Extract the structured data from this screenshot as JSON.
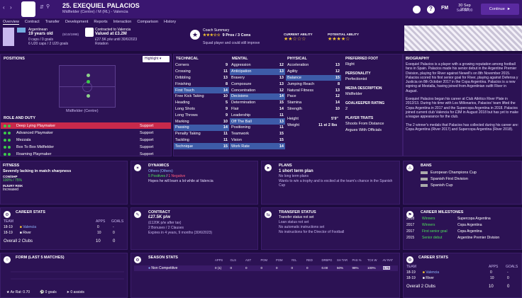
{
  "header": {
    "number_name": "25. EXEQUIEL PALACIOS",
    "position_club": "Midfielder (Centre) / M (RL) - Valencia",
    "date": "30 Sep 2018",
    "day_time": "Sun 19:00",
    "fm": "FM",
    "continue": "Continue"
  },
  "nav": [
    "Overview",
    "Contract",
    "Transfer",
    "Development",
    "Reports",
    "Interaction",
    "Comparison",
    "History"
  ],
  "info": {
    "nationality": "Argentinean",
    "age": "19 years old",
    "dob": "(5/10/1998)",
    "caps": "0 caps / 0 goals",
    "u20": "6 U20 caps / 2 U20 goals",
    "contracted": "Contracted to Valencia",
    "value": "Valued at £3.2M",
    "wage": "£27.5K p/w until 30/6/2023",
    "status": "Rotation",
    "coach_title": "Coach Summary",
    "coach_stats": "9 Pros / 3 Cons",
    "coach_text": "Squad player and could still improve",
    "ca_label": "CURRENT ABILITY",
    "pa_label": "POTENTIAL ABILITY"
  },
  "positions": {
    "title": "POSITIONS",
    "highlight": "Highlight",
    "pitch_label": "Midfielder (Centre)",
    "role_title": "ROLE AND DUTY",
    "roles": [
      {
        "name": "Deep Lying Playmaker",
        "duty": "Support"
      },
      {
        "name": "Advanced Playmaker",
        "duty": "Support"
      },
      {
        "name": "Mezzala",
        "duty": "Support"
      },
      {
        "name": "Box To Box Midfielder",
        "duty": "Support"
      },
      {
        "name": "Roaming Playmaker",
        "duty": "Support"
      }
    ]
  },
  "attributes": {
    "tech_title": "TECHNICAL",
    "ment_title": "MENTAL",
    "phys_title": "PHYSICAL",
    "technical": [
      [
        "Corners",
        "9"
      ],
      [
        "Crossing",
        "11"
      ],
      [
        "Dribbling",
        "13"
      ],
      [
        "Finishing",
        "8"
      ],
      [
        "First Touch",
        "14"
      ],
      [
        "Free Kick Taking",
        "10"
      ],
      [
        "Heading",
        "5"
      ],
      [
        "Long Shots",
        "9"
      ],
      [
        "Long Throws",
        "9"
      ],
      [
        "Marking",
        "10"
      ],
      [
        "Passing",
        "14"
      ],
      [
        "Penalty Taking",
        "11"
      ],
      [
        "Tackling",
        "11"
      ],
      [
        "Technique",
        "15"
      ]
    ],
    "mental": [
      [
        "Aggression",
        "12"
      ],
      [
        "Anticipation",
        "13"
      ],
      [
        "Bravery",
        "13"
      ],
      [
        "Composure",
        "13"
      ],
      [
        "Concentration",
        "12"
      ],
      [
        "Decisions",
        "14"
      ],
      [
        "Determination",
        "15"
      ],
      [
        "Flair",
        "14"
      ],
      [
        "Leadership",
        "11"
      ],
      [
        "Off The Ball",
        "13"
      ],
      [
        "Positioning",
        "11"
      ],
      [
        "Teamwork",
        "15"
      ],
      [
        "Vision",
        "15"
      ],
      [
        "Work Rate",
        "14"
      ]
    ],
    "physical": [
      [
        "Acceleration",
        "13"
      ],
      [
        "Agility",
        "12"
      ],
      [
        "Balance",
        "15"
      ],
      [
        "Jumping Reach",
        "8"
      ],
      [
        "Natural Fitness",
        "13"
      ],
      [
        "Pace",
        "12"
      ],
      [
        "Stamina",
        "14"
      ],
      [
        "Strength",
        "10"
      ]
    ],
    "height_label": "Height",
    "height": "5'9\"",
    "weight_label": "Weight",
    "weight": "11 st 2 lbs"
  },
  "profile": {
    "foot_label": "PREFERRED FOOT",
    "foot": "Right",
    "pers_label": "PERSONALITY",
    "pers": "Perfectionist",
    "media_label": "MEDIA DESCRIPTION",
    "media": "Midfielder",
    "gk_label": "GOALKEEPER RATING",
    "gk": "2",
    "traits_label": "PLAYER TRAITS",
    "traits": "Shoots From Distance",
    "traits2": "Argues With Officials"
  },
  "bio": {
    "title": "BIOGRAPHY",
    "p1": "Exequiel Palacios is a player with a growing reputation among football fans in Spain. Palacios made his senior debut in the Argentine Premier Division, playing for River against Newell's on 8th November 2015. Palacios scored his first senior goal for River, playing against Defensa y Justicia on 8th October 2017 in the Copa Argentina. Palacios is a new signing at Mestalla, having joined from Argentinian outfit River in August.",
    "p2": "Exequiel Palacios began his career at Club Atlético River Plate in 2012/13. During his time with Los Millonarios, Palacios' team lifted the Copa Argentina in 2017 and the Supercopa Argentina in 2018. Palacios joined current club Valencia for £3M in August 2018 but has yet to make a league appearance for the club.",
    "p3": "The 2 winner's medals that Palacios has collected during his career are: Copa Argentina (River 2017) and Supercopa Argentina (River 2018)."
  },
  "fitness": {
    "title": "FITNESS",
    "status": "Severely lacking in match sharpness",
    "con_label": "CON/SHP",
    "con": "100% / 75%",
    "inj_label": "INJURY RISK",
    "inj": "Increased"
  },
  "dynamics": {
    "title": "DYNAMICS",
    "group": "Others (Others)",
    "pos": "5 Positives",
    "neg": "1 Negative",
    "text": "Hopes he will learn a lot while at Valencia"
  },
  "plans": {
    "title": "PLANS",
    "plan": "1 short term plan",
    "l1": "No long term plans",
    "l2": "Wants to win a trophy and is excited at the team's chance in the Spanish Cup"
  },
  "bans": {
    "title": "BANS",
    "items": [
      "European Champions Cup",
      "Spanish First Division",
      "Spanish Cup"
    ]
  },
  "career": {
    "title": "CAREER STATS",
    "team": "TEAM",
    "apps": "APPS",
    "goals": "GOALS",
    "rows": [
      [
        "18-19",
        "Valencia",
        "0",
        "-"
      ],
      [
        "18-19",
        "River",
        "10",
        "0"
      ]
    ],
    "overall": "Overall",
    "clubs": "2 Clubs",
    "o_apps": "10",
    "o_goals": "0"
  },
  "contract": {
    "title": "CONTRACT",
    "wage": "£27.5K p/w",
    "l1": "(£120K p/w after tax)",
    "l2": "2 Bonuses / 2 Clauses",
    "l3": "Expires in 4 years, 9 months (30/6/2023)"
  },
  "transfer": {
    "title": "TRANSFER STATUS",
    "l1": "Transfer status not set",
    "l2": "Loan status not set",
    "l3": "No automatic instructions set",
    "l4": "No instructions for the Director of Football"
  },
  "milestones": {
    "title": "CAREER MILESTONES",
    "rows": [
      [
        "2018",
        "Winners",
        "Supercopa Argentina"
      ],
      [
        "2017",
        "Winners",
        "Copa Argentina"
      ],
      [
        "2017",
        "First senior goal",
        "Copa Argentina"
      ],
      [
        "2015",
        "Senior debut",
        "Argentine Premier Division"
      ]
    ]
  },
  "form": {
    "title": "FORM (LAST 5 MATCHES)",
    "rating": "Av Rat: 0.70",
    "goals": "0 goals",
    "assists": "0 assists"
  },
  "season": {
    "title": "SEASON STATS",
    "cols": [
      "APPS",
      "GLS",
      "AST",
      "POM",
      "POM",
      "YEL",
      "RED",
      "DRBPG",
      "SH TAR",
      "PAS %",
      "TCK W",
      "AV RAT"
    ],
    "label": "Non Competitive",
    "vals": [
      "0 (1)",
      "0",
      "0",
      "0",
      "0",
      "0",
      "0",
      "0.00",
      "50%",
      "98%",
      "100%",
      "6.70"
    ]
  },
  "career2": {
    "title": "CAREER STATS",
    "team": "TEAM",
    "apps": "APPS",
    "goals": "GOALS",
    "rows": [
      [
        "18-19",
        "Valencia",
        "0",
        "-"
      ],
      [
        "18-19",
        "River",
        "10",
        "0"
      ]
    ],
    "overall": "Overall",
    "clubs": "2 Clubs",
    "o_apps": "10",
    "o_goals": "0"
  }
}
